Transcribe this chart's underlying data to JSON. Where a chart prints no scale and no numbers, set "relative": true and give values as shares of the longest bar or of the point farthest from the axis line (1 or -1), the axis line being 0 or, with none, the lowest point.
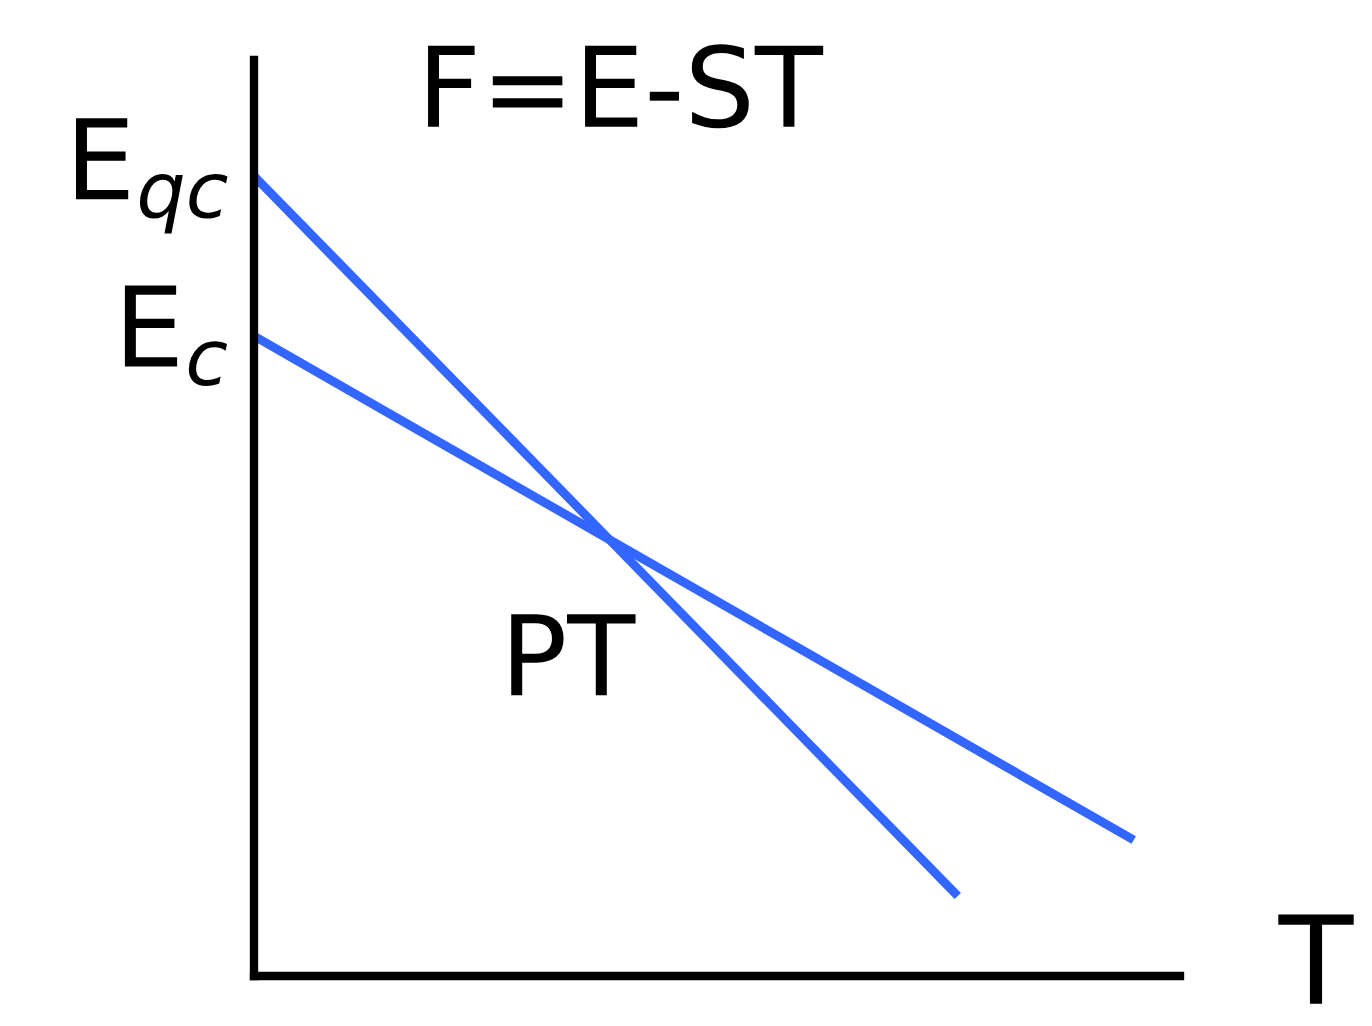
{
  "chart_data": {
    "type": "line",
    "title": "F=E-ST",
    "xlabel": "T",
    "relative": true,
    "marker": "none",
    "line_style": "solid",
    "categories": [
      null,
      null,
      null,
      null,
      null,
      null
    ],
    "series": [
      {
        "color": "#3366ff",
        "values": [
          1,
          0.775,
          0.55,
          0.325,
          0.1,
          null
        ]
      },
      {
        "color": "#3366ff",
        "values": [
          0.8,
          0.674,
          0.548,
          0.422,
          0.296,
          0.17
        ]
      }
    ],
    "annotations": [
      "E$_{qc}$",
      "E$_{c}$",
      "PT"
    ]
  }
}
